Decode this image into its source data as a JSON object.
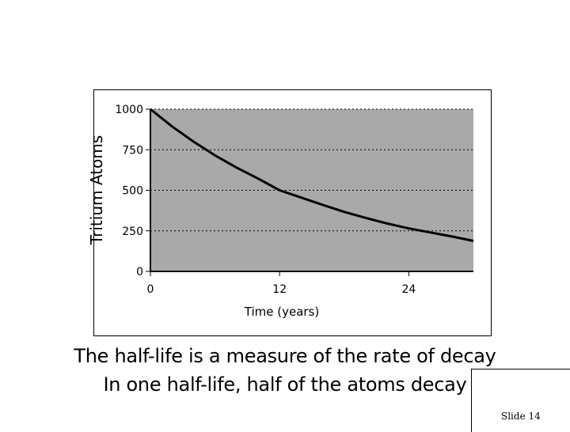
{
  "chart_data": {
    "type": "line",
    "ylabel": "Tritium Atoms",
    "xlabel": "Time (years)",
    "x_ticks": [
      0,
      12,
      24
    ],
    "y_ticks": [
      0,
      250,
      500,
      750,
      1000
    ],
    "xlim": [
      0,
      30
    ],
    "ylim": [
      0,
      1000
    ],
    "grid": "horizontal dotted",
    "plot_background": "#a9a9a9",
    "line_color": "#000000",
    "series": [
      {
        "x": [
          0,
          2,
          4,
          6,
          8,
          10,
          12,
          14,
          16,
          18,
          20,
          22,
          24,
          26,
          28,
          30
        ],
        "values": [
          1000,
          894,
          800,
          715,
          640,
          572,
          500,
          455,
          410,
          367,
          330,
          295,
          265,
          240,
          215,
          188
        ]
      }
    ]
  },
  "caption": {
    "line1": "The half-life is a measure of the rate of decay",
    "line2": "In one half-life, half of the atoms decay"
  },
  "slide": {
    "label": "Slide 14"
  }
}
